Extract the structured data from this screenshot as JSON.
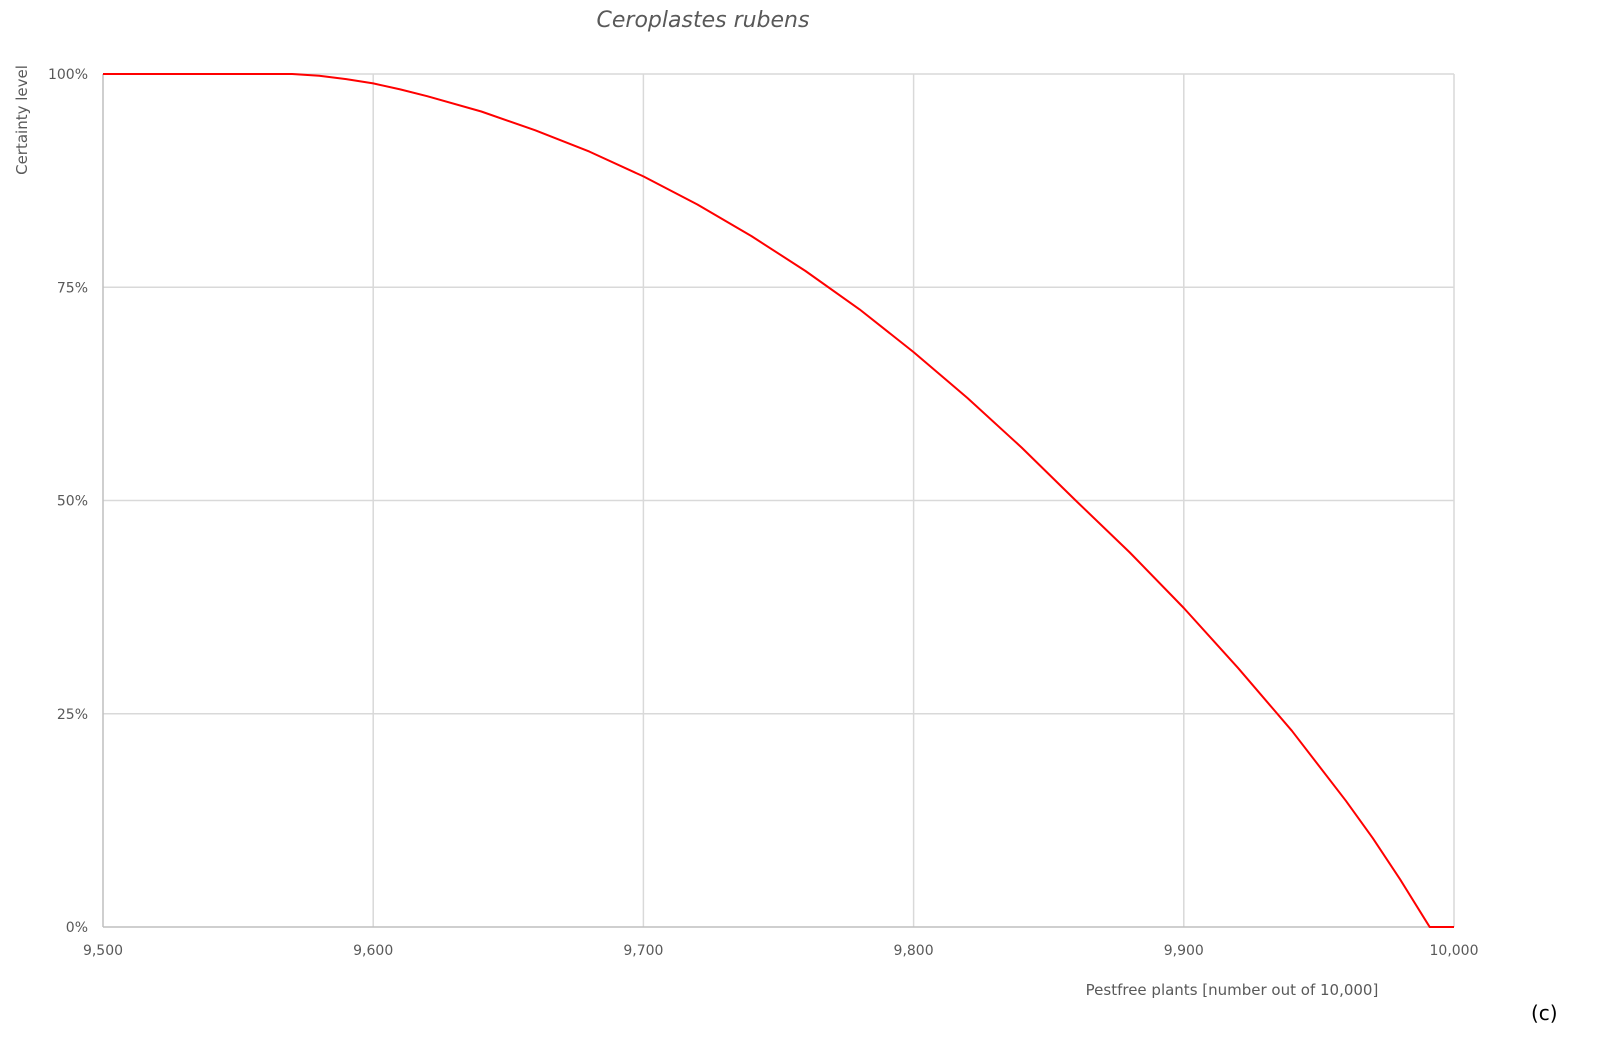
{
  "chart_data": {
    "type": "line",
    "title": "Ceroplastes rubens",
    "xlabel": "Pestfree plants [number out of 10,000]",
    "ylabel": "Certainty level",
    "xlim": [
      9500,
      10000
    ],
    "ylim": [
      0,
      100
    ],
    "x_ticks": [
      "9,500",
      "9,600",
      "9,700",
      "9,800",
      "9,900",
      "10,000"
    ],
    "y_ticks": [
      "0%",
      "25%",
      "50%",
      "75%",
      "100%"
    ],
    "grid": true,
    "legend": "none",
    "series": [
      {
        "color": "#ff0000",
        "x": [
          9500,
          9550,
          9570,
          9580,
          9590,
          9600,
          9610,
          9620,
          9640,
          9660,
          9680,
          9700,
          9720,
          9740,
          9760,
          9780,
          9800,
          9820,
          9840,
          9860,
          9880,
          9900,
          9920,
          9940,
          9960,
          9970,
          9980,
          9990,
          9991,
          10000
        ],
        "y": [
          100,
          100,
          100,
          99.8,
          99.4,
          98.9,
          98.2,
          97.4,
          95.6,
          93.4,
          90.9,
          88.0,
          84.7,
          81.0,
          76.9,
          72.4,
          67.4,
          62.0,
          56.2,
          50.0,
          43.9,
          37.4,
          30.4,
          23.0,
          14.8,
          10.4,
          5.6,
          0.5,
          0,
          0
        ]
      }
    ]
  },
  "panel_label": "(c)"
}
